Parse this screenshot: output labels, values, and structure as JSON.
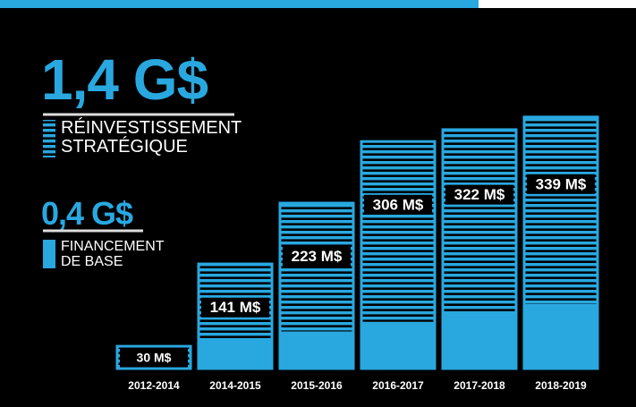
{
  "chart_data": {
    "type": "bar",
    "categories": [
      "2012-2014",
      "2014-2015",
      "2015-2016",
      "2016-2017",
      "2017-2018",
      "2018-2019"
    ],
    "values": [
      30,
      141,
      223,
      306,
      322,
      339
    ],
    "value_labels": [
      "30 M$",
      "141 M$",
      "223 M$",
      "306 M$",
      "322 M$",
      "339 M$"
    ],
    "color": "#29a8e0",
    "ylim": [
      0,
      340
    ],
    "series": [
      {
        "name": "RÉINVESTISSEMENT STRATÉGIQUE",
        "amount": "1,4 G$",
        "pattern": "striped"
      },
      {
        "name": "FINANCEMENT DE BASE",
        "amount": "0,4 G$",
        "pattern": "solid",
        "values": [
          0,
          38,
          50,
          63,
          75,
          87
        ]
      }
    ]
  }
}
